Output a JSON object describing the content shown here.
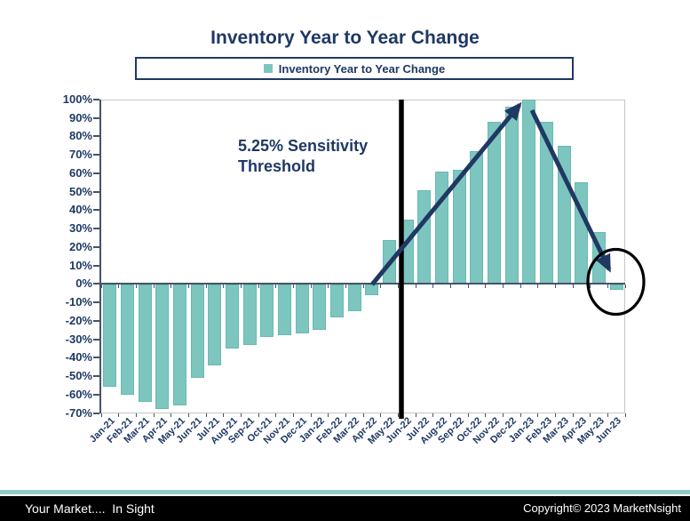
{
  "title": "Inventory Year to Year Change",
  "legend": {
    "label": "Inventory Year to Year Change"
  },
  "annotation": {
    "line1": "5.25% Sensitivity",
    "line2": "Threshold"
  },
  "footer": {
    "left": "Your Market....  In Sight",
    "right": "Copyright© 2023 MarketNsight"
  },
  "colors": {
    "accent_navy": "#1F3864",
    "bar_fill": "#7DC6BF",
    "bar_edge": "#69B9B1",
    "axis": "#44546A",
    "plot_border": "#C6C6C6",
    "threshold_line": "#000000",
    "arrow": "#203864",
    "circle": "#000000",
    "footer_teal": "#8FCBC7",
    "footer_black": "#000000"
  },
  "chart_data": {
    "type": "bar",
    "title": "Inventory Year to Year Change",
    "series_name": "Inventory Year to Year Change",
    "categories": [
      "Jan-21",
      "Feb-21",
      "Mar-21",
      "Apr-21",
      "May-21",
      "Jun-21",
      "Jul-21",
      "Aug-21",
      "Sep-21",
      "Oct-21",
      "Nov-21",
      "Dec-21",
      "Jan-22",
      "Feb-22",
      "Mar-22",
      "Apr-22",
      "May-22",
      "Jun-22",
      "Jul-22",
      "Aug-22",
      "Sep-22",
      "Oct-22",
      "Nov-22",
      "Dec-22",
      "Jan-23",
      "Feb-23",
      "Mar-23",
      "Apr-23",
      "May-23",
      "Jun-23"
    ],
    "values": [
      -56,
      -60,
      -64,
      -68,
      -66,
      -51,
      -44,
      -35,
      -33,
      -29,
      -28,
      -27,
      -25,
      -18,
      -15,
      -6,
      24,
      35,
      51,
      61,
      62,
      72,
      88,
      96,
      100,
      88,
      75,
      55,
      28,
      -3
    ],
    "xlabel": "",
    "ylabel": "",
    "ylim": [
      -70,
      100
    ],
    "ytick_step": 10,
    "ytick_labels": [
      "100%",
      "90%",
      "80%",
      "70%",
      "60%",
      "50%",
      "40%",
      "30%",
      "20%",
      "10%",
      "0%",
      "-10%",
      "-20%",
      "-30%",
      "-40%",
      "-50%",
      "-60%",
      "-70%"
    ],
    "grid": false,
    "legend_position": "top",
    "x_label_rotation_deg": -45,
    "annotations": [
      "5.25% Sensitivity Threshold",
      "vertical black threshold line between May-22 and Jun-22",
      "navy arrow rising from the zero line near May-22 to the Jan-23 peak",
      "navy arrow falling from the Jan-23 peak to Jun-23",
      "black circle highlighting the small negative Jun-23 bar"
    ]
  }
}
